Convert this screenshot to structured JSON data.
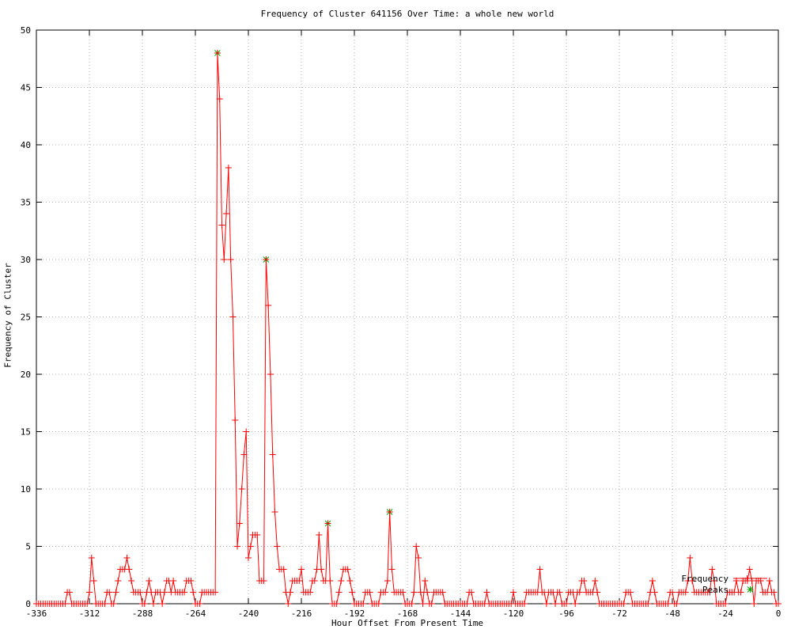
{
  "title": "Frequency of Cluster 641156 Over Time: a whole new world",
  "legend": {
    "entries": [
      {
        "label": "Frequency",
        "type": "line-point"
      },
      {
        "label": "Peaks",
        "type": "star"
      }
    ]
  },
  "chart_data": {
    "type": "line",
    "title": "Frequency of Cluster 641156 Over Time: a whole new world",
    "xlabel": "Hour Offset From Present Time",
    "ylabel": "Frequency of Cluster",
    "xlim": [
      -336,
      0
    ],
    "ylim": [
      0,
      50
    ],
    "x_ticks": [
      -336,
      -312,
      -288,
      -264,
      -240,
      -216,
      -192,
      -168,
      -144,
      -120,
      -96,
      -72,
      -48,
      -24,
      0
    ],
    "y_ticks": [
      0,
      5,
      10,
      15,
      20,
      25,
      30,
      35,
      40,
      45,
      50
    ],
    "grid": true,
    "legend_position": "bottom-right",
    "x_start": -336,
    "x_step": 1,
    "series": [
      {
        "name": "Frequency",
        "values": [
          0,
          0,
          0,
          0,
          0,
          0,
          0,
          0,
          0,
          0,
          0,
          0,
          0,
          0,
          1,
          1,
          0,
          0,
          0,
          0,
          0,
          0,
          0,
          0,
          1,
          4,
          2,
          0,
          0,
          0,
          0,
          0,
          1,
          1,
          0,
          0,
          1,
          2,
          3,
          3,
          3,
          4,
          3,
          2,
          1,
          1,
          1,
          1,
          0,
          0,
          1,
          2,
          1,
          0,
          1,
          1,
          1,
          0,
          1,
          2,
          2,
          1,
          2,
          1,
          1,
          1,
          1,
          1,
          2,
          2,
          2,
          1,
          0,
          0,
          0,
          1,
          1,
          1,
          1,
          1,
          1,
          1,
          48,
          44,
          33,
          30,
          34,
          38,
          30,
          25,
          16,
          5,
          7,
          10,
          13,
          15,
          4,
          5,
          6,
          6,
          6,
          2,
          2,
          2,
          30,
          26,
          20,
          13,
          8,
          5,
          3,
          3,
          3,
          1,
          0,
          1,
          2,
          2,
          2,
          2,
          3,
          1,
          1,
          1,
          1,
          2,
          2,
          3,
          6,
          3,
          2,
          2,
          7,
          2,
          0,
          0,
          0,
          1,
          2,
          3,
          3,
          3,
          2,
          1,
          0,
          0,
          0,
          0,
          0,
          1,
          1,
          1,
          0,
          0,
          0,
          0,
          1,
          1,
          1,
          2,
          8,
          3,
          1,
          1,
          1,
          1,
          1,
          0,
          0,
          0,
          0,
          1,
          5,
          4,
          1,
          0,
          2,
          1,
          0,
          0,
          1,
          1,
          1,
          1,
          1,
          0,
          0,
          0,
          0,
          0,
          0,
          0,
          0,
          0,
          0,
          0,
          1,
          1,
          0,
          0,
          0,
          0,
          0,
          0,
          1,
          0,
          0,
          0,
          0,
          0,
          0,
          0,
          0,
          0,
          0,
          0,
          1,
          0,
          0,
          0,
          0,
          0,
          1,
          1,
          1,
          1,
          1,
          1,
          3,
          1,
          1,
          0,
          1,
          1,
          1,
          0,
          1,
          1,
          0,
          0,
          0,
          1,
          1,
          1,
          0,
          1,
          1,
          2,
          2,
          1,
          1,
          1,
          1,
          2,
          1,
          0,
          0,
          0,
          0,
          0,
          0,
          0,
          0,
          0,
          0,
          0,
          0,
          1,
          1,
          1,
          0,
          0,
          0,
          0,
          0,
          0,
          0,
          0,
          1,
          2,
          1,
          0,
          0,
          0,
          0,
          0,
          0,
          1,
          1,
          0,
          0,
          1,
          1,
          1,
          1,
          2,
          4,
          2,
          1,
          1,
          1,
          1,
          1,
          1,
          1,
          1,
          3,
          2,
          0,
          0,
          0,
          0,
          0,
          1,
          1,
          1,
          1,
          2,
          1,
          1,
          2,
          2,
          2,
          3,
          2,
          0,
          2,
          2,
          2,
          1,
          1,
          1,
          2,
          1,
          1,
          0,
          0
        ]
      },
      {
        "name": "Peaks",
        "points": [
          [
            -254,
            48
          ],
          [
            -232,
            30
          ],
          [
            -204,
            7
          ],
          [
            -176,
            8
          ]
        ]
      }
    ],
    "colors": {
      "line": "#ff0000",
      "peaks": "#00a400",
      "grid": "#b0b0b0",
      "border": "#000000",
      "text": "#000000",
      "background": "#ffffff"
    }
  }
}
